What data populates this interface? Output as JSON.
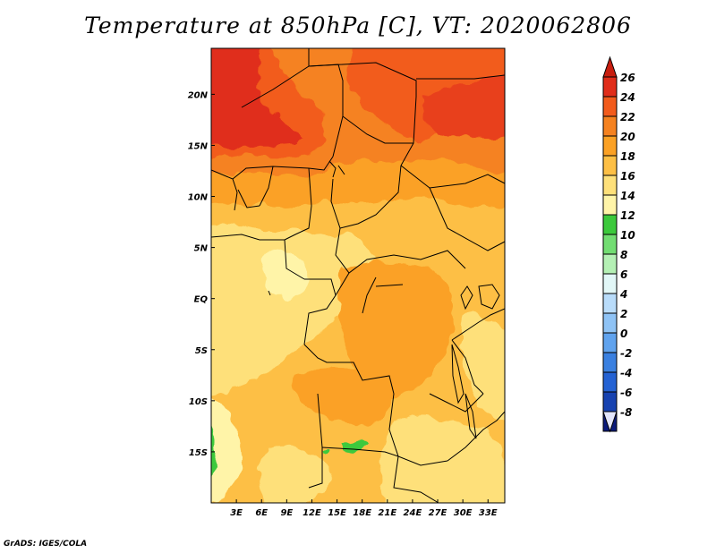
{
  "title": "Temperature at 850hPa [C], VT: 2020062806",
  "footer": "GrADS: IGES/COLA",
  "map": {
    "lon_range": [
      0,
      35
    ],
    "lat_range": [
      -20,
      24.5
    ],
    "x_ticks": [
      "3E",
      "6E",
      "9E",
      "12E",
      "15E",
      "18E",
      "21E",
      "24E",
      "27E",
      "30E",
      "33E"
    ],
    "x_tick_values": [
      3,
      6,
      9,
      12,
      15,
      18,
      21,
      24,
      27,
      30,
      33
    ],
    "y_ticks": [
      "20N",
      "15N",
      "10N",
      "5N",
      "EQ",
      "5S",
      "10S",
      "15S"
    ],
    "y_tick_values": [
      20,
      15,
      10,
      5,
      0,
      -5,
      -10,
      -15
    ]
  },
  "colorbar": {
    "labels": [
      "26",
      "24",
      "22",
      "20",
      "18",
      "16",
      "14",
      "12",
      "10",
      "8",
      "6",
      "4",
      "2",
      "0",
      "-2",
      "-4",
      "-6",
      "-8"
    ],
    "colors": [
      "#fafad2",
      "#fff5a0",
      "#fee08b",
      "#fdc15a",
      "#fca431",
      "#f78520",
      "#f0581c",
      "#e13018",
      "#c51a10",
      "#a01008"
    ],
    "cold_colors": [
      "#3ec93e",
      "#78e078",
      "#b8f2b8",
      "#e6f9ff",
      "#b8e0ff",
      "#8ec8ff",
      "#5ea6f5",
      "#3380e6",
      "#1f5fd6",
      "#1540b5",
      "#0c1a8a"
    ],
    "bins": [
      {
        "color": "#e02d1a"
      },
      {
        "color": "#f25b1c"
      },
      {
        "color": "#f58220"
      },
      {
        "color": "#fba125"
      },
      {
        "color": "#fdbf45"
      },
      {
        "color": "#fee07a"
      },
      {
        "color": "#fff4a8"
      },
      {
        "color": "#3cc93c"
      },
      {
        "color": "#72dd72"
      },
      {
        "color": "#b4f0b4"
      },
      {
        "color": "#e2f7f7"
      },
      {
        "color": "#b9dcfa"
      },
      {
        "color": "#8fc3f5"
      },
      {
        "color": "#60a3ee"
      },
      {
        "color": "#3a80e0"
      },
      {
        "color": "#2462d3"
      },
      {
        "color": "#1742b0"
      },
      {
        "color": "#0b1a7a"
      }
    ],
    "top_triangle_color": "#c81e0f",
    "bottom_triangle_color": "#e3e6fb"
  }
}
